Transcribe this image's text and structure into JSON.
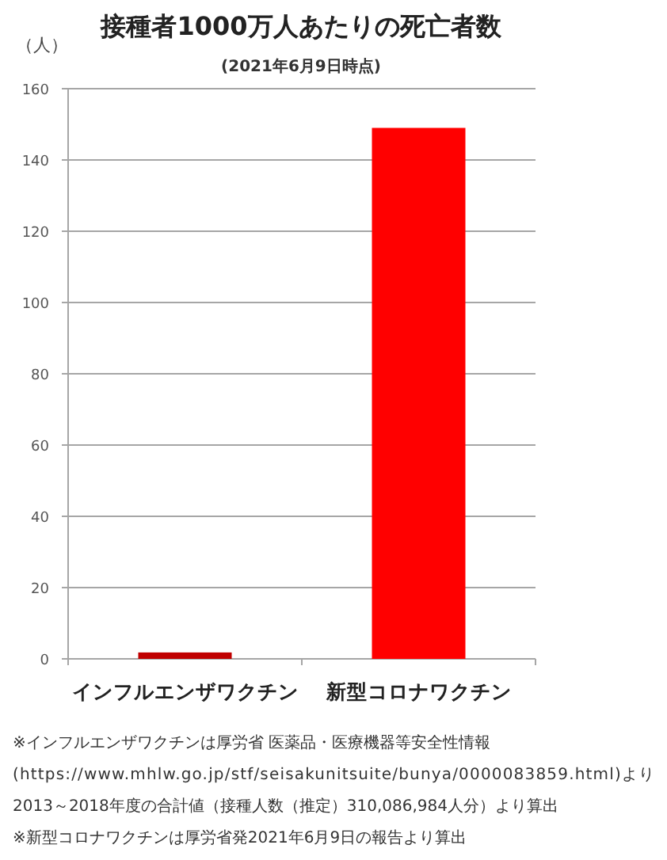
{
  "chart_data": {
    "type": "bar",
    "title": "接種者1000万人あたりの死亡者数",
    "subtitle": "(2021年6月9日時点)",
    "ylabel": "（人）",
    "categories": [
      "インフルエンザワクチン",
      "新型コロナワクチン"
    ],
    "values": [
      1.8,
      149
    ],
    "colors": [
      "#c00000",
      "#ff0000"
    ],
    "ylim": [
      0,
      160
    ],
    "yticks": [
      0,
      20,
      40,
      60,
      80,
      100,
      120,
      140,
      160
    ],
    "grid": "y",
    "annotations": [
      "※インフルエンザワクチンは厚労省 医薬品・医療機器等安全性情報",
      "(https://www.mhlw.go.jp/stf/seisakunitsuite/bunya/0000083859.html)より",
      "2013～2018年度の合計値（接種人数（推定）310,086,984人分）より算出",
      "※新型コロナワクチンは厚労省発2021年6月9日の報告より算出"
    ]
  }
}
